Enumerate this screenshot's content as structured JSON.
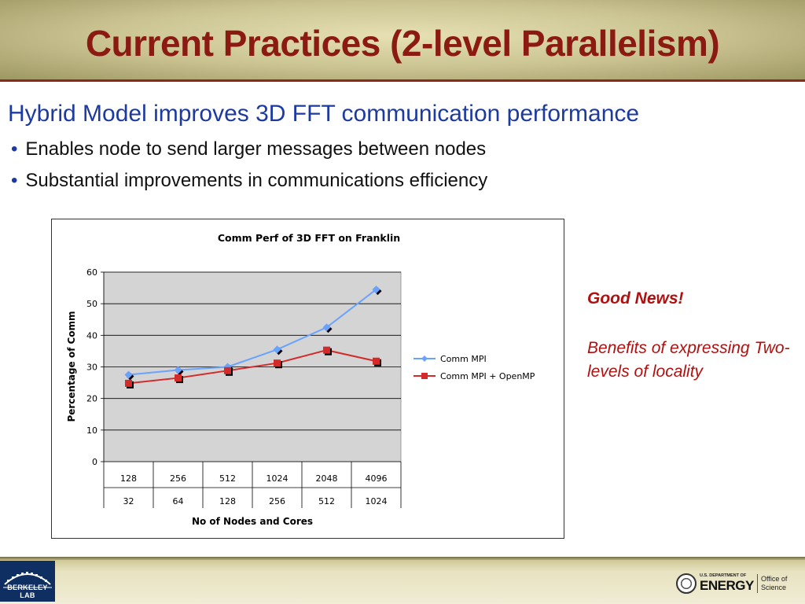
{
  "slide": {
    "title": "Current Practices (2-level Parallelism)",
    "subtitle": "Hybrid Model improves 3D FFT communication performance",
    "bullets": [
      "Enables node to send larger messages between nodes",
      "Substantial improvements in communications efficiency"
    ],
    "note_heading": "Good News!",
    "note_body": "Benefits of expressing Two-levels of locality"
  },
  "footer": {
    "left_logo": "BERKELEY LAB",
    "right_logo_top": "U.S. DEPARTMENT OF",
    "right_logo_main": "ENERGY",
    "right_logo_office": "Office of Science"
  },
  "colors": {
    "title": "#8b1a12",
    "subtitle": "#1c3aa0",
    "note": "#b01010",
    "series_mpi": "#6aa3ff",
    "series_hybrid": "#d42a2a",
    "plot_bg": "#d4d4d4"
  },
  "chart_data": {
    "type": "line",
    "title": "Comm Perf of 3D FFT on Franklin",
    "xlabel": "No of Nodes and Cores",
    "ylabel": "Percentage of Comm",
    "categories_level1": [
      "128",
      "256",
      "512",
      "1024",
      "2048",
      "4096"
    ],
    "categories_level2": [
      "32",
      "64",
      "128",
      "256",
      "512",
      "1024"
    ],
    "ylim": [
      0,
      60
    ],
    "yticks": [
      "0",
      "10",
      "20",
      "30",
      "40",
      "50",
      "60"
    ],
    "grid": true,
    "legend_position": "right",
    "series": [
      {
        "name": "Comm MPI",
        "marker": "diamond",
        "color": "#6aa3ff",
        "values": [
          27.5,
          29,
          30,
          35.5,
          42.5,
          54.5
        ]
      },
      {
        "name": "Comm MPI + OpenMP",
        "marker": "square",
        "color": "#d42a2a",
        "values": [
          24.8,
          26.5,
          28.8,
          31.2,
          35.3,
          31.8
        ]
      }
    ]
  }
}
